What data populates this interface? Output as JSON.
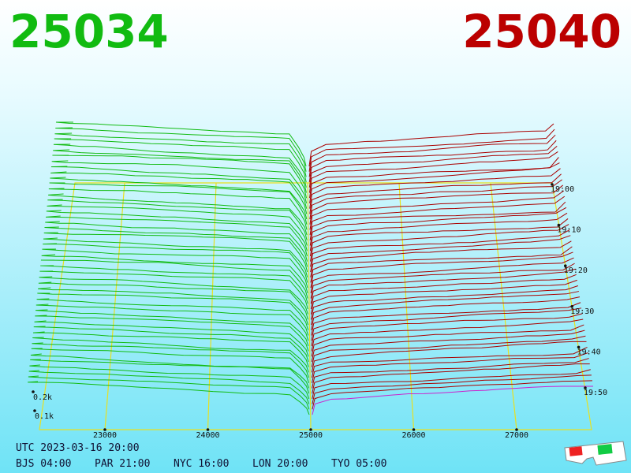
{
  "header": {
    "bid": 25034,
    "ask": 25040
  },
  "price_axis": {
    "ticks": [
      23000,
      24000,
      25000,
      26000,
      27000
    ]
  },
  "time_axis": {
    "ticks": [
      "19:00",
      "19:10",
      "19:20",
      "19:30",
      "19:40",
      "19:50"
    ]
  },
  "depth_axis": {
    "ticks": [
      {
        "value": 200,
        "label": "0.2k"
      },
      {
        "value": 100,
        "label": "0.1k"
      }
    ]
  },
  "footer": {
    "utc": "UTC 2023-03-16 20:00",
    "zones": [
      "BJS 04:00",
      "PAR 21:00",
      "NYC 16:00",
      "LON 20:00",
      "TYO 05:00"
    ]
  }
}
